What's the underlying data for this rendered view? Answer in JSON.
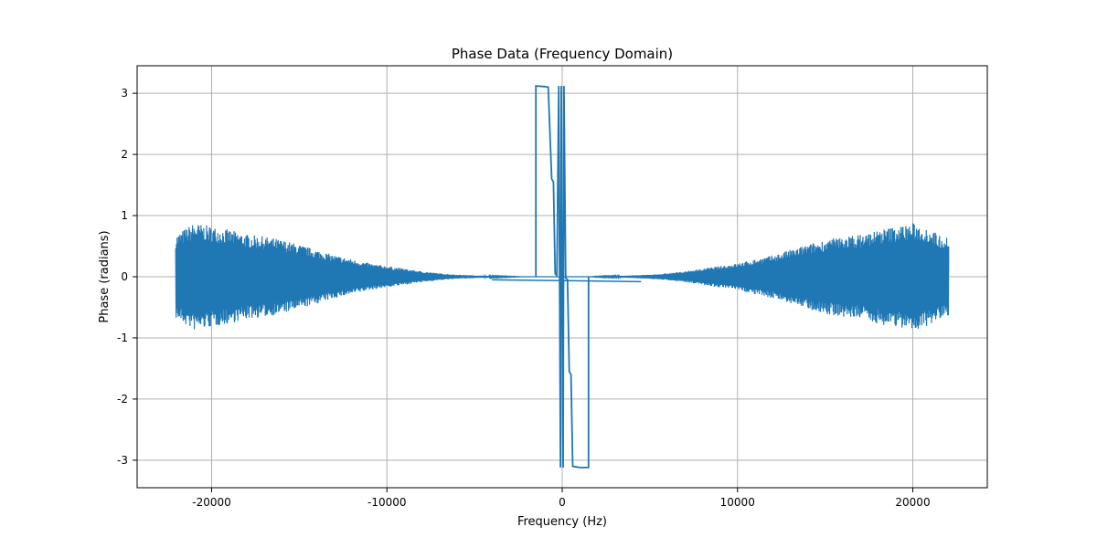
{
  "chart_data": {
    "type": "line",
    "title": "Phase Data (Frequency Domain)",
    "xlabel": "Frequency (Hz)",
    "ylabel": "Phase (radians)",
    "xlim": [
      -24250,
      24250
    ],
    "ylim": [
      -3.45,
      3.45
    ],
    "x_ticks": [
      -20000,
      -10000,
      0,
      10000,
      20000
    ],
    "x_tick_labels": [
      "-20000",
      "-10000",
      "0",
      "10000",
      "20000"
    ],
    "y_ticks": [
      -3,
      -2,
      -1,
      0,
      1,
      2,
      3
    ],
    "y_tick_labels": [
      "-3",
      "-2",
      "-1",
      "0",
      "1",
      "2",
      "3"
    ],
    "grid": true,
    "line_color": "#1f77b4",
    "series": [
      {
        "x": [
          -22050,
          -21500,
          -21000,
          -20000,
          -19000,
          -18000,
          -17000,
          -16000,
          -15000,
          -14000,
          -13000,
          -12000,
          -11000,
          -10000,
          -9000,
          -8000,
          -7000,
          -6000,
          -5000,
          -4000,
          -3000,
          -2000,
          -1500,
          -1500,
          -1000,
          -800,
          -600,
          -500,
          -400,
          -300,
          -200,
          -100,
          -50,
          0,
          50,
          100,
          200,
          300,
          400,
          500,
          600,
          800,
          1000,
          1500,
          1500,
          2000,
          3000,
          4000,
          5000,
          6000,
          7000,
          8000,
          9000,
          10000,
          11000,
          12000,
          13000,
          14000,
          15000,
          16000,
          17000,
          18000,
          19000,
          20000,
          21000,
          21500,
          22050
        ],
        "y": [
          0.62,
          0.72,
          0.8,
          0.75,
          0.7,
          0.63,
          0.6,
          0.55,
          0.48,
          0.4,
          0.32,
          0.26,
          0.2,
          0.16,
          0.12,
          0.08,
          0.05,
          0.03,
          0.02,
          0.01,
          0.005,
          0.0,
          0.0,
          3.12,
          3.11,
          3.1,
          1.6,
          1.55,
          0.05,
          0.02,
          3.12,
          -3.12,
          3.12,
          -0.05,
          -3.12,
          3.12,
          -0.02,
          -0.05,
          -1.55,
          -1.6,
          -3.1,
          -3.11,
          -3.12,
          -3.12,
          0.0,
          0.005,
          0.01,
          0.02,
          0.03,
          0.05,
          0.08,
          0.12,
          0.16,
          0.2,
          0.26,
          0.32,
          0.4,
          0.48,
          0.55,
          0.6,
          0.63,
          0.7,
          0.75,
          0.8,
          0.72,
          0.62,
          0.6
        ]
      }
    ]
  }
}
